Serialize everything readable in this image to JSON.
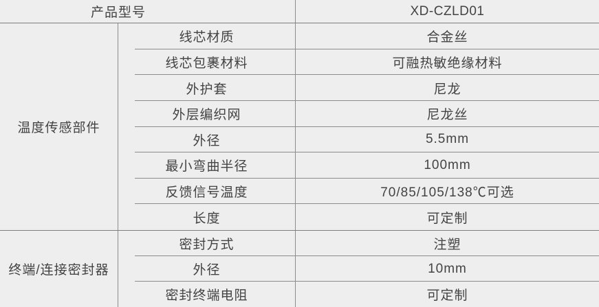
{
  "table": {
    "header": {
      "label": "产品型号",
      "value": "XD-CZLD01"
    },
    "sections": [
      {
        "group": "温度传感部件",
        "rows": [
          {
            "label": "线芯材质",
            "value": "合金丝"
          },
          {
            "label": "线芯包裹材料",
            "value": "可融热敏绝缘材料"
          },
          {
            "label": "外护套",
            "value": "尼龙"
          },
          {
            "label": "外层编织网",
            "value": "尼龙丝"
          },
          {
            "label": "外径",
            "value": "5.5mm"
          },
          {
            "label": "最小弯曲半径",
            "value": "100mm"
          },
          {
            "label": "反馈信号温度",
            "value": "70/85/105/138℃可选"
          },
          {
            "label": "长度",
            "value": "可定制"
          }
        ]
      },
      {
        "group": "终端/连接密封器",
        "rows": [
          {
            "label": "密封方式",
            "value": "注塑"
          },
          {
            "label": "外径",
            "value": "10mm"
          },
          {
            "label": "密封终端电阻",
            "value": "可定制"
          }
        ]
      }
    ],
    "colors": {
      "background": "#efeeee",
      "grid_line": "#8c8c8c",
      "section_line": "#7d7d7d",
      "text": "#434343"
    }
  }
}
